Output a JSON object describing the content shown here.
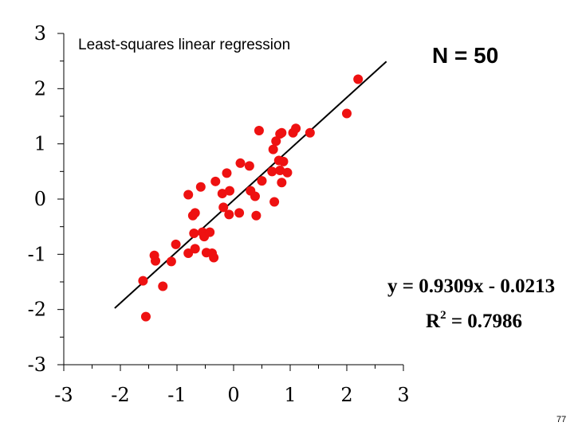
{
  "chart_data": {
    "type": "scatter",
    "title": "Least-squares linear regression",
    "annotations": {
      "n_label": "N = 50",
      "equation": "y = 0.9309x - 0.0213",
      "r2_prefix": "R",
      "r2_exp": "2",
      "r2_value": " = 0.7986"
    },
    "xlim": [
      -3,
      3
    ],
    "ylim": [
      -3,
      3
    ],
    "x_ticks": [
      -3,
      -2,
      -1,
      0,
      1,
      2,
      3
    ],
    "x_tick_labels": [
      "-3",
      "-2",
      "-1",
      "0",
      "1",
      "2",
      "3"
    ],
    "y_ticks": [
      -3,
      -2,
      -1,
      0,
      1,
      2,
      3
    ],
    "y_tick_labels": [
      "-3",
      "-2",
      "-1",
      "0",
      "1",
      "2",
      "3"
    ],
    "grid": false,
    "point_color": "#ee1111",
    "line_color": "#000000",
    "fit_line": {
      "slope": 0.9309,
      "intercept": -0.0213,
      "x_range": [
        -2.1,
        2.7
      ]
    },
    "series": [
      {
        "points": [
          [
            -1.6,
            -1.48
          ],
          [
            -1.55,
            -2.13
          ],
          [
            -1.4,
            -1.02
          ],
          [
            -1.38,
            -1.12
          ],
          [
            -1.25,
            -1.58
          ],
          [
            -1.1,
            -1.13
          ],
          [
            -1.02,
            -0.82
          ],
          [
            -0.8,
            0.08
          ],
          [
            -0.8,
            -0.98
          ],
          [
            -0.72,
            -0.3
          ],
          [
            -0.7,
            -0.62
          ],
          [
            -0.68,
            -0.25
          ],
          [
            -0.68,
            -0.9
          ],
          [
            -0.58,
            0.22
          ],
          [
            -0.55,
            -0.6
          ],
          [
            -0.52,
            -0.68
          ],
          [
            -0.48,
            -0.97
          ],
          [
            -0.42,
            -0.6
          ],
          [
            -0.38,
            -0.98
          ],
          [
            -0.35,
            -1.06
          ],
          [
            -0.32,
            0.32
          ],
          [
            -0.2,
            0.1
          ],
          [
            -0.18,
            -0.15
          ],
          [
            -0.12,
            0.47
          ],
          [
            -0.08,
            -0.28
          ],
          [
            -0.07,
            0.15
          ],
          [
            0.1,
            -0.25
          ],
          [
            0.12,
            0.65
          ],
          [
            0.28,
            0.6
          ],
          [
            0.3,
            0.15
          ],
          [
            0.38,
            0.05
          ],
          [
            0.4,
            -0.3
          ],
          [
            0.45,
            1.24
          ],
          [
            0.5,
            0.33
          ],
          [
            0.68,
            0.5
          ],
          [
            0.7,
            0.9
          ],
          [
            0.72,
            -0.05
          ],
          [
            0.75,
            1.05
          ],
          [
            0.8,
            0.7
          ],
          [
            0.82,
            0.52
          ],
          [
            0.82,
            1.18
          ],
          [
            0.85,
            0.3
          ],
          [
            0.88,
            0.68
          ],
          [
            0.95,
            0.48
          ],
          [
            1.05,
            1.2
          ],
          [
            1.1,
            1.28
          ],
          [
            1.35,
            1.2
          ],
          [
            2.0,
            1.55
          ],
          [
            2.2,
            2.17
          ],
          [
            0.85,
            1.2
          ]
        ]
      }
    ]
  },
  "page_number": "77"
}
